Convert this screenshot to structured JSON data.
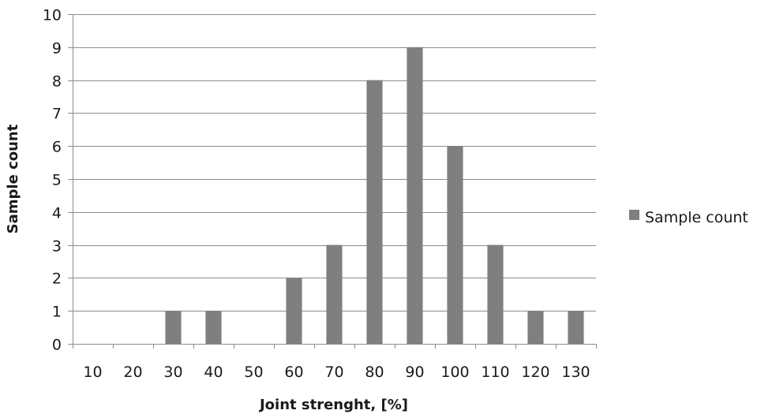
{
  "chart_data": {
    "type": "bar",
    "title": "",
    "xlabel": "Joint strenght, [%]",
    "ylabel": "Sample count",
    "categories": [
      "10",
      "20",
      "30",
      "40",
      "50",
      "60",
      "70",
      "80",
      "90",
      "100",
      "110",
      "120",
      "130"
    ],
    "series": [
      {
        "name": "Sample count",
        "values": [
          0,
          0,
          1,
          1,
          0,
          2,
          3,
          8,
          9,
          6,
          3,
          1,
          1
        ],
        "color": "#7f7f7f"
      }
    ],
    "ylim": [
      0,
      10
    ],
    "yticks": [
      0,
      1,
      2,
      3,
      4,
      5,
      6,
      7,
      8,
      9,
      10
    ],
    "grid": true,
    "legend_position": "right"
  }
}
